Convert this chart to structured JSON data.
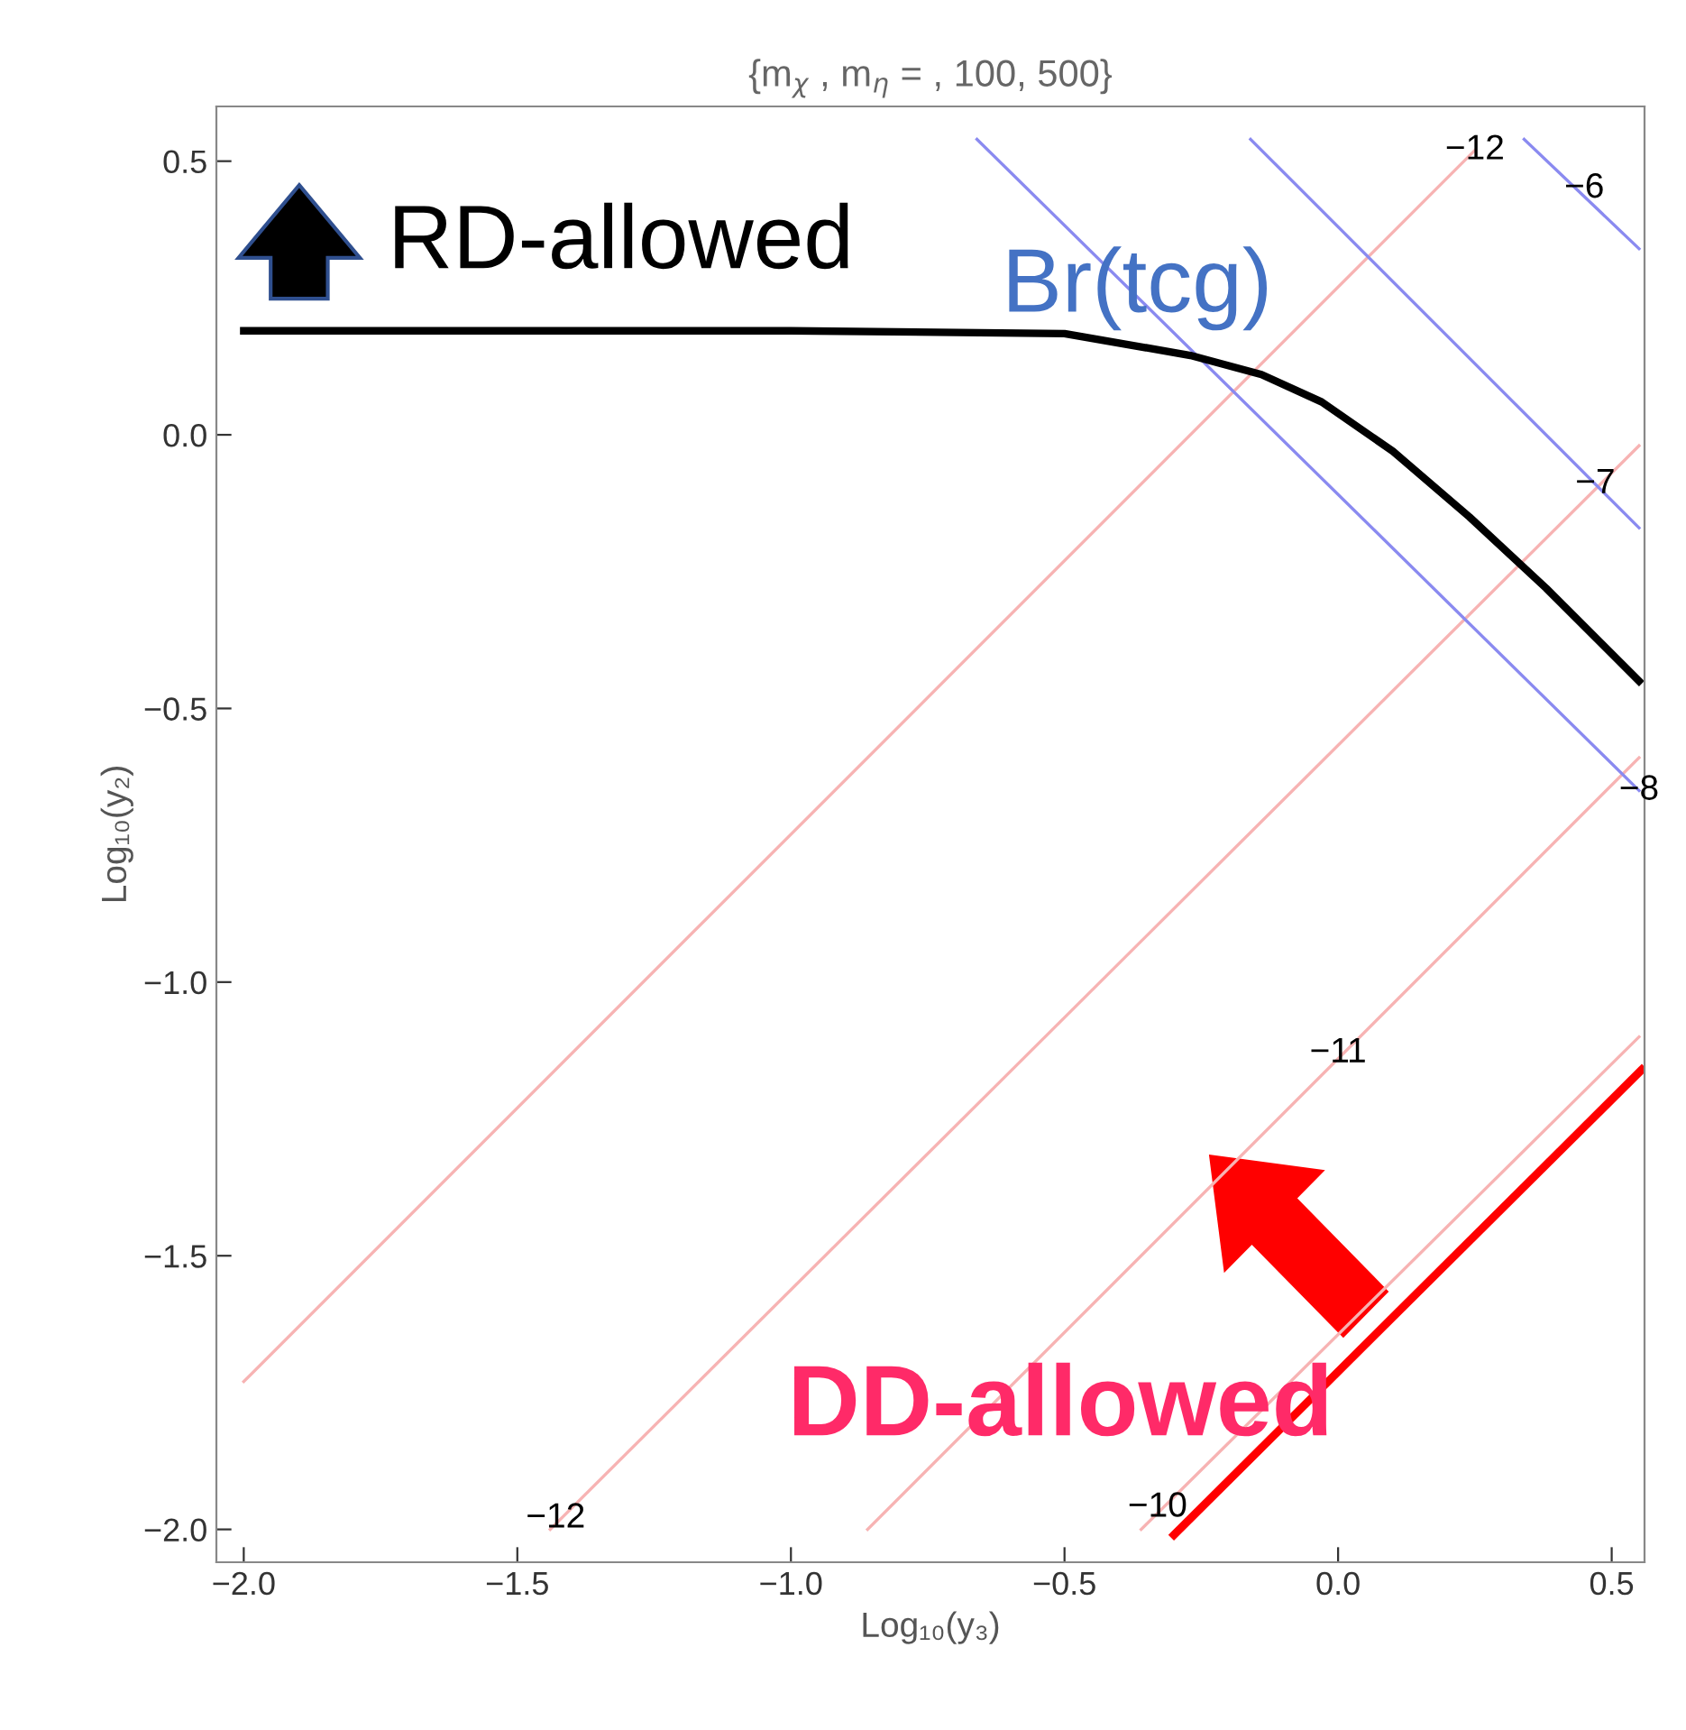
{
  "chart_data": {
    "type": "line",
    "title": "{m$_{χ}$ , m$_{η}$ = , 100, 500}",
    "xlabel": "Log₁₀(y₃)",
    "ylabel": "Log₁₀(y₂)",
    "xlim": [
      -2.05,
      0.56
    ],
    "ylim": [
      -2.06,
      0.6
    ],
    "xticks": [
      {
        "value": -2.0,
        "label": "−2.0"
      },
      {
        "value": -1.5,
        "label": "−1.5"
      },
      {
        "value": -1.0,
        "label": "−1.0"
      },
      {
        "value": -0.5,
        "label": "−0.5"
      },
      {
        "value": 0.0,
        "label": "0.0"
      },
      {
        "value": 0.5,
        "label": "0.5"
      }
    ],
    "yticks": [
      {
        "value": -2.0,
        "label": "−2.0"
      },
      {
        "value": -1.5,
        "label": "−1.5"
      },
      {
        "value": -1.0,
        "label": "−1.0"
      },
      {
        "value": -0.5,
        "label": "−0.5"
      },
      {
        "value": 0.0,
        "label": "0.0"
      },
      {
        "value": 0.5,
        "label": "0.5"
      }
    ],
    "grid": false,
    "legend": false,
    "marker": "none",
    "line_style": "solid",
    "series": [
      {
        "color": "#f7b3b3",
        "x": [
          -2.0,
          0.25
        ],
        "values": [
          -1.73,
          0.52
        ]
      },
      {
        "color": "#f7b3b3",
        "x": [
          -1.44,
          0.55
        ],
        "values": [
          -2.0,
          -0.02
        ]
      },
      {
        "color": "#f7b3b3",
        "x": [
          -0.86,
          0.55
        ],
        "values": [
          -2.0,
          -0.59
        ]
      },
      {
        "color": "#f7b3b3",
        "x": [
          -0.36,
          0.55
        ],
        "values": [
          -2.0,
          -1.1
        ]
      },
      {
        "color": "#ff0000",
        "x": [
          -0.3,
          0.555
        ],
        "values": [
          -2.01,
          -1.16
        ]
      },
      {
        "color": "#8a8af0",
        "x": [
          -0.66,
          0.55
        ],
        "values": [
          0.54,
          -0.65
        ]
      },
      {
        "color": "#8a8af0",
        "x": [
          -0.16,
          0.55
        ],
        "values": [
          0.54,
          -0.17
        ]
      },
      {
        "color": "#8a8af0",
        "x": [
          0.34,
          0.55
        ],
        "values": [
          0.54,
          0.34
        ]
      },
      {
        "color": "#000000",
        "x": [
          -2.0,
          -1.0,
          -0.5,
          -0.27,
          -0.14,
          -0.03,
          0.1,
          0.24,
          0.38,
          0.55
        ],
        "values": [
          0.19,
          0.19,
          0.185,
          0.145,
          0.11,
          0.06,
          -0.03,
          -0.15,
          -0.28,
          -0.45
        ]
      }
    ],
    "annotations": [
      {
        "text": "−12",
        "x": 0.25,
        "y": 0.52
      },
      {
        "text": "−12",
        "x": -1.43,
        "y": -1.98
      },
      {
        "text": "−11",
        "x": 0.0,
        "y": -1.13
      },
      {
        "text": "−10",
        "x": -0.33,
        "y": -1.96
      },
      {
        "text": "−6",
        "x": 0.45,
        "y": 0.45
      },
      {
        "text": "−7",
        "x": 0.47,
        "y": -0.09
      },
      {
        "text": "−8",
        "x": 0.55,
        "y": -0.65
      },
      "RD-allowed",
      "Br(tcg)",
      "DD-allowed"
    ]
  }
}
